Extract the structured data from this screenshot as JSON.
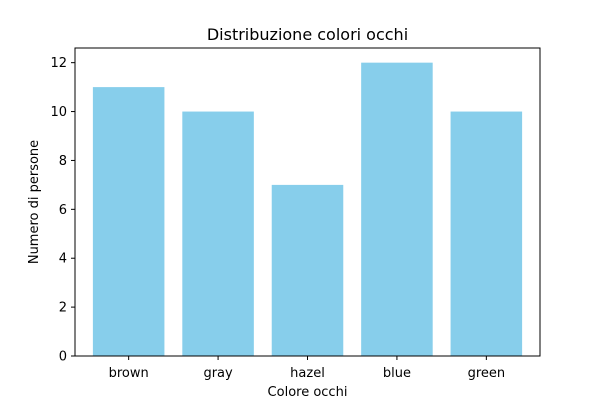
{
  "chart_data": {
    "type": "bar",
    "title": "Distribuzione colori occhi",
    "xlabel": "Colore occhi",
    "ylabel": "Numero di persone",
    "categories": [
      "brown",
      "gray",
      "hazel",
      "blue",
      "green"
    ],
    "values": [
      11,
      10,
      7,
      12,
      10
    ],
    "ylim": [
      0,
      12.6
    ],
    "yticks": [
      0,
      2,
      4,
      6,
      8,
      10,
      12
    ],
    "bar_color": "#87CEEB",
    "grid": false,
    "legend": "none"
  }
}
